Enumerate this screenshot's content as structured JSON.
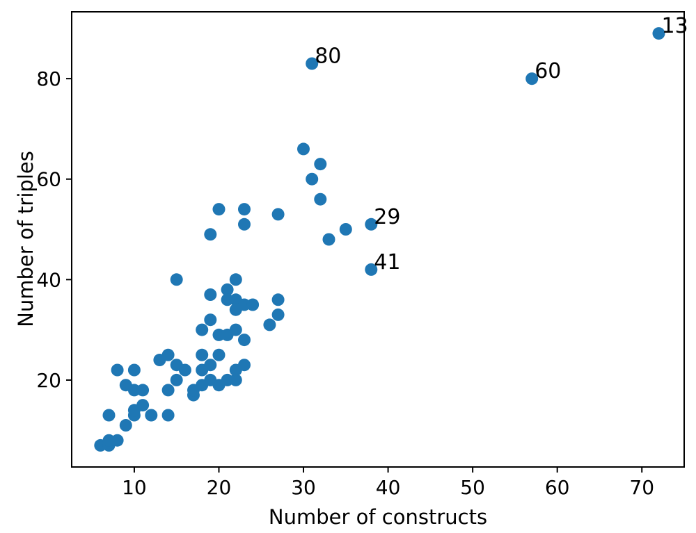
{
  "chart_data": {
    "type": "scatter",
    "title": "",
    "xlabel": "Number of constructs",
    "ylabel": "Number of triples",
    "xlim": [
      2.6,
      75.0
    ],
    "ylim": [
      2.7,
      93.3
    ],
    "x_ticks": [
      10,
      20,
      30,
      40,
      50,
      60,
      70
    ],
    "y_ticks": [
      20,
      40,
      60,
      80
    ],
    "grid": false,
    "legend": null,
    "marker_color": "#1f77b4",
    "axis_color": "#000000",
    "annotation_color": "#000000",
    "points": [
      {
        "x": 6,
        "y": 7
      },
      {
        "x": 7,
        "y": 7
      },
      {
        "x": 7,
        "y": 8
      },
      {
        "x": 8,
        "y": 8
      },
      {
        "x": 7,
        "y": 13
      },
      {
        "x": 9,
        "y": 11
      },
      {
        "x": 10,
        "y": 13
      },
      {
        "x": 10,
        "y": 14
      },
      {
        "x": 11,
        "y": 15
      },
      {
        "x": 12,
        "y": 13
      },
      {
        "x": 14,
        "y": 13
      },
      {
        "x": 8,
        "y": 22
      },
      {
        "x": 10,
        "y": 22
      },
      {
        "x": 9,
        "y": 19
      },
      {
        "x": 10,
        "y": 18
      },
      {
        "x": 11,
        "y": 18
      },
      {
        "x": 13,
        "y": 24
      },
      {
        "x": 14,
        "y": 25
      },
      {
        "x": 15,
        "y": 23
      },
      {
        "x": 16,
        "y": 22
      },
      {
        "x": 15,
        "y": 20
      },
      {
        "x": 14,
        "y": 18
      },
      {
        "x": 17,
        "y": 17
      },
      {
        "x": 17,
        "y": 18
      },
      {
        "x": 18,
        "y": 19
      },
      {
        "x": 19,
        "y": 20
      },
      {
        "x": 20,
        "y": 19
      },
      {
        "x": 21,
        "y": 20
      },
      {
        "x": 22,
        "y": 20
      },
      {
        "x": 18,
        "y": 22
      },
      {
        "x": 19,
        "y": 23
      },
      {
        "x": 22,
        "y": 22
      },
      {
        "x": 23,
        "y": 23
      },
      {
        "x": 18,
        "y": 25
      },
      {
        "x": 20,
        "y": 25
      },
      {
        "x": 23,
        "y": 28
      },
      {
        "x": 18,
        "y": 30
      },
      {
        "x": 20,
        "y": 29
      },
      {
        "x": 21,
        "y": 29
      },
      {
        "x": 22,
        "y": 30
      },
      {
        "x": 19,
        "y": 32
      },
      {
        "x": 15,
        "y": 40
      },
      {
        "x": 22,
        "y": 40
      },
      {
        "x": 21,
        "y": 38
      },
      {
        "x": 19,
        "y": 37
      },
      {
        "x": 21,
        "y": 36
      },
      {
        "x": 22,
        "y": 36
      },
      {
        "x": 23,
        "y": 35
      },
      {
        "x": 24,
        "y": 35
      },
      {
        "x": 22,
        "y": 34
      },
      {
        "x": 26,
        "y": 31
      },
      {
        "x": 27,
        "y": 33
      },
      {
        "x": 27,
        "y": 36
      },
      {
        "x": 19,
        "y": 49
      },
      {
        "x": 20,
        "y": 54
      },
      {
        "x": 23,
        "y": 54
      },
      {
        "x": 23,
        "y": 51
      },
      {
        "x": 27,
        "y": 53
      },
      {
        "x": 30,
        "y": 66
      },
      {
        "x": 31,
        "y": 60
      },
      {
        "x": 32,
        "y": 63
      },
      {
        "x": 32,
        "y": 56
      },
      {
        "x": 33,
        "y": 48
      },
      {
        "x": 35,
        "y": 50
      },
      {
        "x": 38,
        "y": 51,
        "label": "29"
      },
      {
        "x": 38,
        "y": 42,
        "label": "41"
      },
      {
        "x": 31,
        "y": 83,
        "label": "80"
      },
      {
        "x": 57,
        "y": 80,
        "label": "60"
      },
      {
        "x": 72,
        "y": 89,
        "label": "13"
      }
    ]
  }
}
